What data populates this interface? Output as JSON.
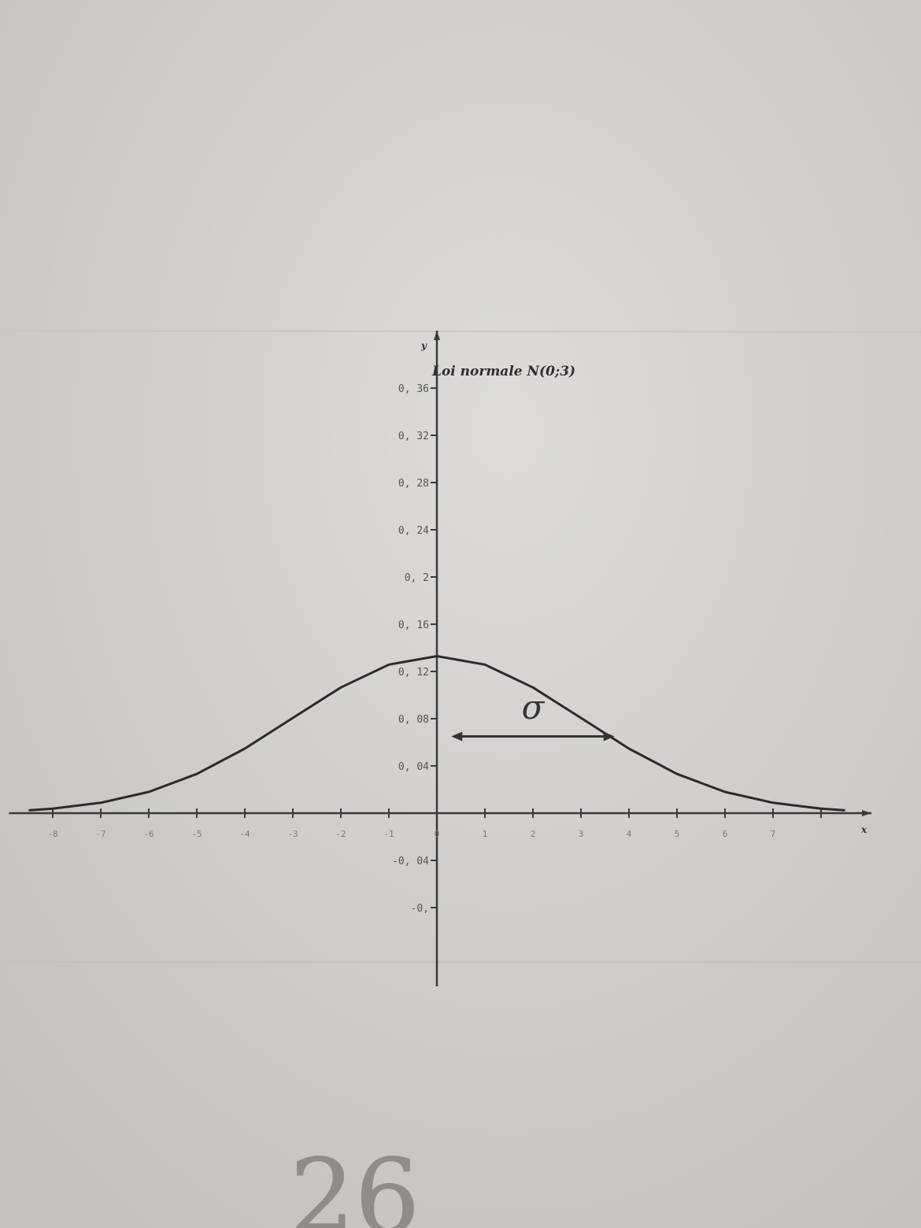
{
  "chart_data": {
    "type": "line",
    "title": "Loi normale N(0;3)",
    "xlabel": "x",
    "ylabel": "y",
    "xlim": [
      -8.5,
      9
    ],
    "ylim": [
      -0.08,
      0.38
    ],
    "x_ticks": [
      -8,
      -7,
      -6,
      -5,
      -4,
      -3,
      -2,
      -1,
      0,
      1,
      2,
      3,
      4,
      5,
      6,
      7,
      8
    ],
    "x_tick_labels": [
      "-8",
      "-7",
      "-6",
      "-5",
      "-4",
      "-3",
      "-2",
      "-1",
      "0",
      "1",
      "2",
      "3",
      "4",
      "5",
      "6",
      "7",
      ""
    ],
    "y_ticks": [
      -0.08,
      -0.04,
      0.04,
      0.08,
      0.12,
      0.16,
      0.2,
      0.24,
      0.28,
      0.32,
      0.36
    ],
    "y_tick_labels": [
      "-0,",
      "-0, 04",
      "0, 04",
      "0, 08",
      "0, 12",
      "0, 16",
      "0, 2",
      "0, 24",
      "0, 28",
      "0, 32",
      "0, 36"
    ],
    "series": [
      {
        "x": [
          -8.5,
          -8,
          -7,
          -6,
          -5,
          -4,
          -3,
          -2,
          -1,
          0,
          1,
          2,
          3,
          4,
          5,
          6,
          7,
          8,
          8.5
        ],
        "values": [
          0.0024,
          0.0038,
          0.0088,
          0.018,
          0.0332,
          0.0547,
          0.0807,
          0.1065,
          0.1258,
          0.133,
          0.1258,
          0.1065,
          0.0807,
          0.0547,
          0.0332,
          0.018,
          0.0088,
          0.0038,
          0.0024
        ]
      }
    ],
    "annotations": [
      {
        "text": "σ",
        "type": "double-arrow",
        "x_from": 0.3,
        "x_to": 3.7,
        "y": 0.065,
        "text_x": 2,
        "text_y": 0.088
      }
    ],
    "handwritten_note": "26",
    "grid": false
  }
}
